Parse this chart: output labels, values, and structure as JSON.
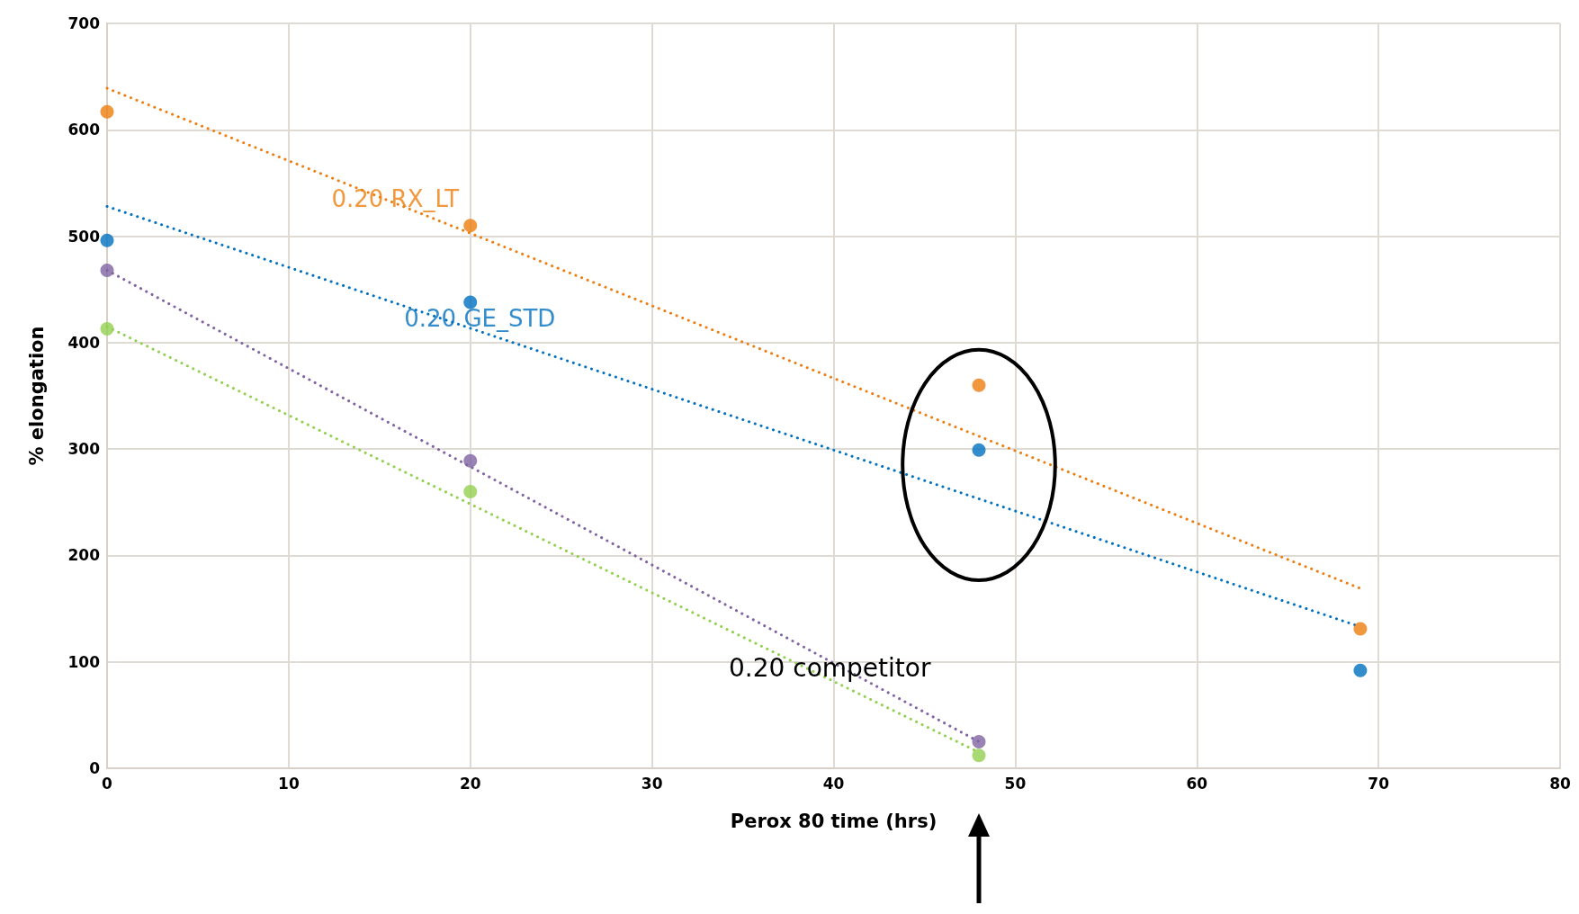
{
  "chart_data": {
    "type": "scatter",
    "xlabel": "Perox 80 time (hrs)",
    "ylabel": "% elongation",
    "xlim": [
      0,
      80
    ],
    "xticks": [
      0,
      10,
      20,
      30,
      40,
      50,
      60,
      70,
      80
    ],
    "ylim": [
      0,
      700
    ],
    "yticks": [
      0,
      100,
      200,
      300,
      400,
      500,
      600,
      700
    ],
    "grid": true,
    "marker": "circle",
    "series": [
      {
        "name": "0.20 RX_LT",
        "color": "#ed7d0e",
        "x": [
          0,
          20,
          48,
          69
        ],
        "values": [
          617,
          510,
          360,
          131
        ]
      },
      {
        "name": "0.20 GE_STD",
        "color": "#0070c0",
        "x": [
          0,
          20,
          48,
          69
        ],
        "values": [
          496,
          438,
          299,
          92
        ]
      },
      {
        "color": "#8064a2",
        "x": [
          0,
          20,
          48
        ],
        "values": [
          468,
          289,
          25
        ]
      },
      {
        "color": "#92d050",
        "x": [
          0,
          20,
          48
        ],
        "values": [
          413,
          260,
          12
        ]
      },
      {
        "type": "line",
        "color": "#ed7d0e",
        "x": [
          0,
          69
        ],
        "values": [
          639,
          169
        ],
        "line_style": "dotted",
        "marker": "none"
      },
      {
        "type": "line",
        "color": "#0070c0",
        "x": [
          0,
          69
        ],
        "values": [
          528,
          133
        ],
        "line_style": "dotted",
        "marker": "none"
      },
      {
        "type": "line",
        "color": "#8064a2",
        "x": [
          0,
          48
        ],
        "values": [
          468,
          25
        ],
        "line_style": "dotted",
        "marker": "none"
      },
      {
        "type": "line",
        "color": "#92d050",
        "x": [
          0,
          48
        ],
        "values": [
          415,
          15
        ],
        "line_style": "dotted",
        "marker": "none"
      }
    ],
    "annotations": [
      "0.20 competitor"
    ]
  }
}
